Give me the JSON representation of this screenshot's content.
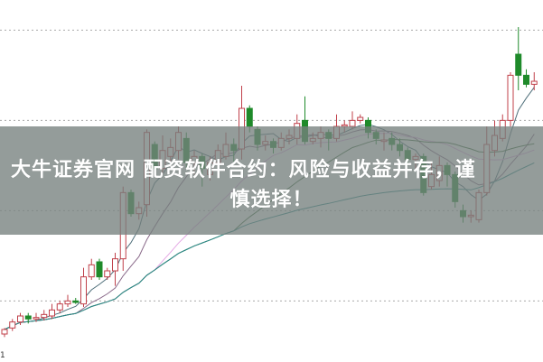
{
  "banner": {
    "line1": "大牛证券官网 配资软件合约：风险与收益并存，谨",
    "line2": "慎选择！",
    "background": "#76807e"
  },
  "chart_data": {
    "type": "candlestick",
    "title": "",
    "xlabel": "",
    "ylabel": "",
    "x_tick_partial": "1",
    "grid": "horizontal dotted",
    "grid_levels": [
      20,
      50,
      80,
      110
    ],
    "ylim": [
      0,
      120
    ],
    "colors": {
      "up": "#c0404a",
      "down": "#1f8a2a",
      "ma": [
        "#4f6f7a",
        "#8a6a8a",
        "#e4a8e4",
        "#3f6f3f",
        "#2a8a8a"
      ]
    },
    "moving_averages": [
      5,
      10,
      20,
      30,
      60
    ],
    "candles": [
      [
        9,
        10.5,
        11,
        8
      ],
      [
        11,
        13,
        14,
        10
      ],
      [
        13,
        15,
        16,
        12
      ],
      [
        15,
        14,
        16,
        12.5
      ],
      [
        14,
        14.5,
        16,
        13
      ],
      [
        14.5,
        15.5,
        17,
        13.5
      ],
      [
        15,
        17,
        19,
        14
      ],
      [
        17,
        19,
        20,
        16
      ],
      [
        19,
        20,
        22,
        18
      ],
      [
        20,
        19.5,
        21,
        19
      ],
      [
        19,
        28,
        31,
        18
      ],
      [
        28,
        32,
        34,
        27
      ],
      [
        33,
        28,
        34,
        27
      ],
      [
        28,
        30,
        31,
        27
      ],
      [
        30,
        34,
        36,
        25
      ],
      [
        34,
        56,
        58,
        30
      ],
      [
        56,
        49,
        57,
        48
      ],
      [
        49,
        51,
        53,
        47
      ],
      [
        52,
        76,
        77,
        48
      ],
      [
        72,
        64,
        73,
        63
      ],
      [
        64,
        70,
        75,
        62
      ],
      [
        68,
        71,
        74,
        66
      ],
      [
        70,
        76,
        78,
        67
      ],
      [
        74,
        66,
        76,
        64
      ],
      [
        66,
        68,
        70,
        62
      ],
      [
        68,
        64,
        69,
        58
      ],
      [
        62,
        66,
        68,
        60
      ],
      [
        66,
        70,
        72,
        64
      ],
      [
        68,
        72,
        76,
        67
      ],
      [
        72,
        70,
        74,
        66
      ],
      [
        70.5,
        84,
        91.5,
        67
      ],
      [
        84,
        78,
        85,
        76
      ],
      [
        77,
        72,
        78,
        70
      ],
      [
        72,
        73,
        75,
        70
      ],
      [
        73,
        71,
        74,
        69
      ],
      [
        71,
        74,
        76,
        70
      ],
      [
        74,
        75,
        77,
        72
      ],
      [
        74,
        79,
        82,
        72
      ],
      [
        80,
        73,
        88,
        72
      ],
      [
        73,
        74,
        76,
        72
      ],
      [
        74,
        76,
        78,
        71
      ],
      [
        76,
        74,
        77,
        70
      ],
      [
        74,
        78,
        82,
        73
      ],
      [
        78,
        78.5,
        80,
        76
      ],
      [
        78,
        80,
        83,
        77
      ],
      [
        80,
        81,
        82,
        79
      ],
      [
        80,
        76,
        81,
        74
      ],
      [
        76,
        74,
        77,
        72
      ],
      [
        73,
        73.5,
        76,
        70
      ],
      [
        74,
        72,
        76,
        70
      ],
      [
        72,
        70,
        74,
        68
      ],
      [
        70,
        67,
        71,
        65
      ],
      [
        67,
        68,
        69,
        64
      ],
      [
        68,
        56,
        69,
        55
      ],
      [
        58,
        62,
        66,
        57
      ],
      [
        60,
        65,
        68,
        58
      ],
      [
        65,
        62,
        66,
        58
      ],
      [
        62,
        53,
        63,
        51
      ],
      [
        50,
        48,
        52,
        46
      ],
      [
        48,
        48.5,
        50,
        46
      ],
      [
        47,
        56,
        57,
        46
      ],
      [
        56,
        72,
        78,
        55
      ],
      [
        70,
        75,
        80,
        68
      ],
      [
        74,
        80,
        82,
        73
      ],
      [
        80,
        95,
        96,
        78
      ],
      [
        102,
        95,
        111,
        90
      ],
      [
        95,
        92,
        97,
        91
      ],
      [
        92,
        93,
        96,
        90
      ]
    ]
  }
}
